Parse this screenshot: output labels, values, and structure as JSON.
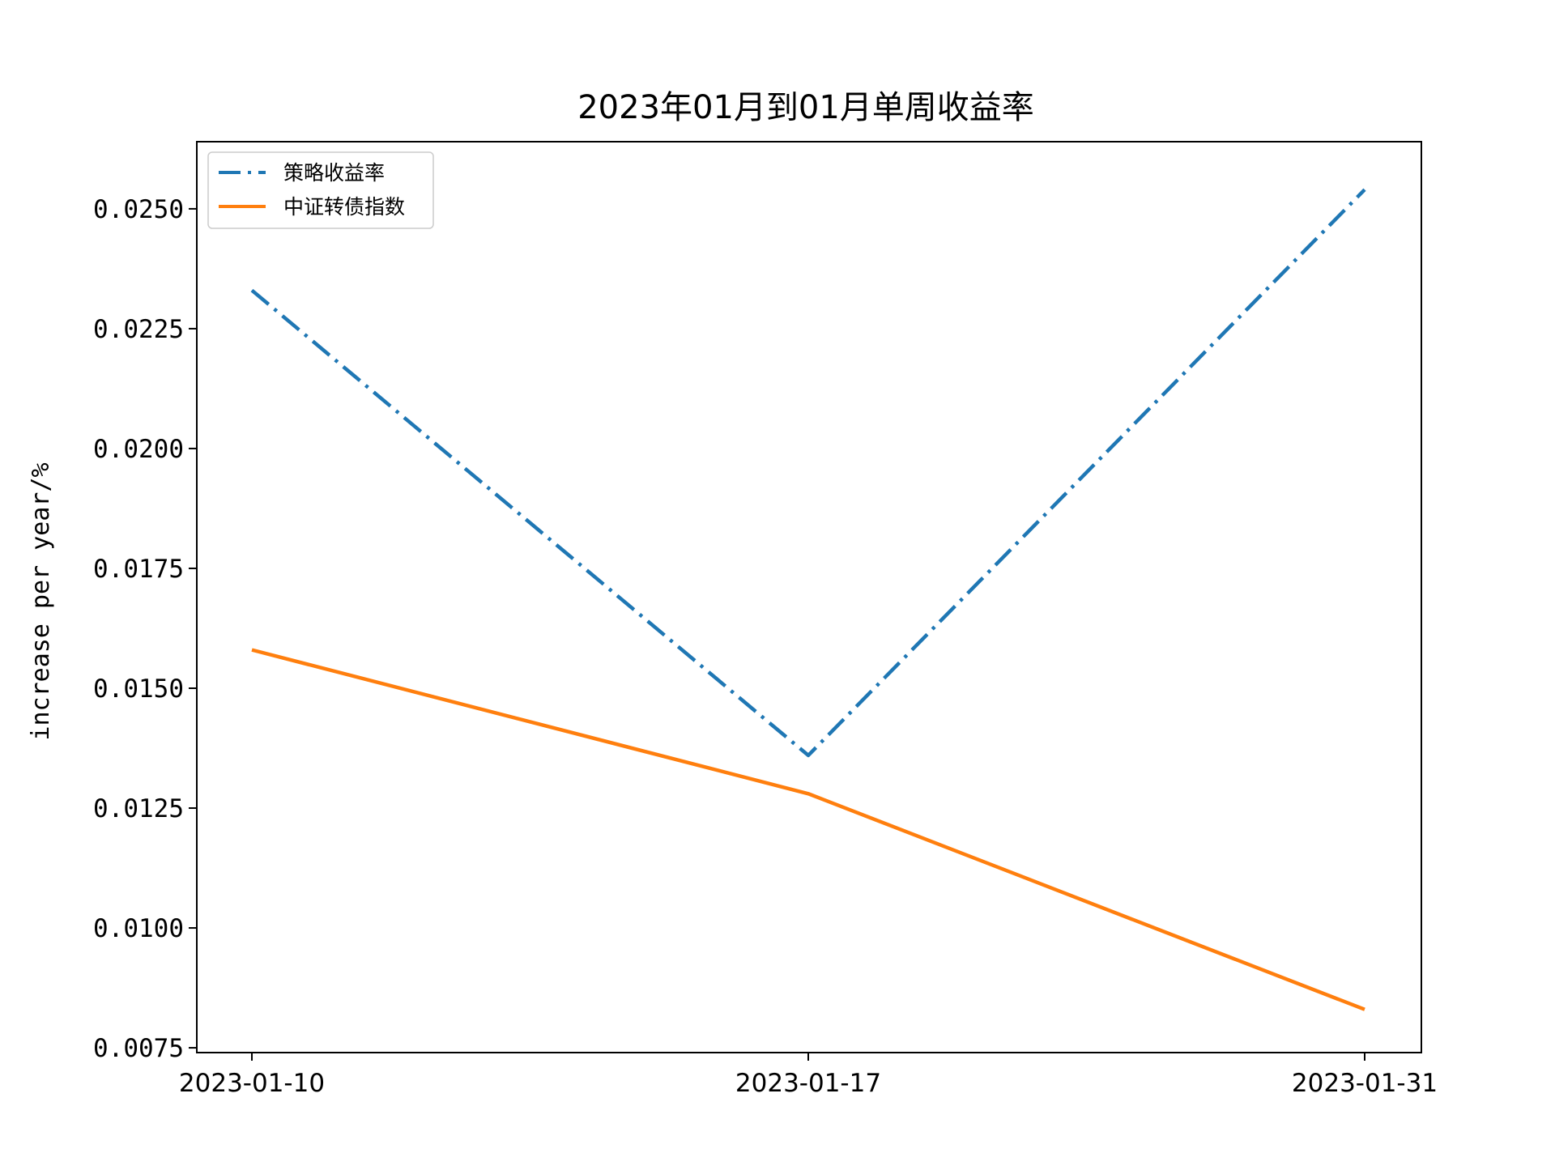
{
  "chart_data": {
    "type": "line",
    "title": "2023年01月到01月单周收益率",
    "xlabel": "",
    "ylabel": "increase per year/%",
    "categories": [
      "2023-01-10",
      "2023-01-17",
      "2023-01-31"
    ],
    "series": [
      {
        "name": "策略收益率",
        "values": [
          0.0233,
          0.0136,
          0.0254
        ],
        "color": "#1f77b4",
        "style": "dashdot"
      },
      {
        "name": "中证转债指数",
        "values": [
          0.0158,
          0.0128,
          0.0083
        ],
        "color": "#ff7f0e",
        "style": "solid"
      }
    ],
    "ylim": [
      0.0074,
      0.0264
    ],
    "yticks": [
      "0.0075",
      "0.0100",
      "0.0125",
      "0.0150",
      "0.0175",
      "0.0200",
      "0.0225",
      "0.0250"
    ],
    "grid": false,
    "legend_position": "top-left"
  }
}
